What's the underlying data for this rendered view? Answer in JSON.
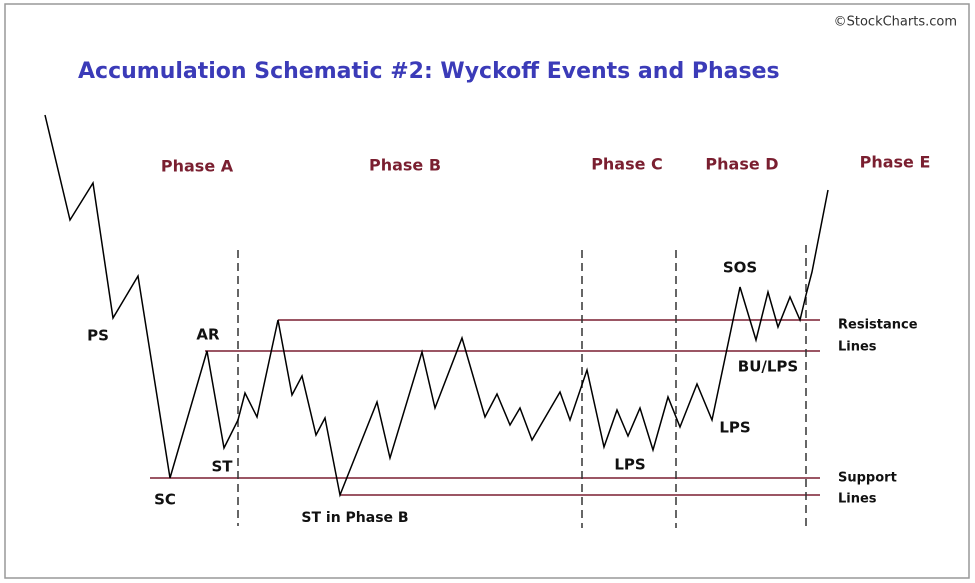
{
  "header": {
    "title": "Accumulation Schematic #2: Wyckoff Events and Phases",
    "credit": "©StockCharts.com"
  },
  "phases": [
    "Phase A",
    "Phase B",
    "Phase C",
    "Phase D",
    "Phase E"
  ],
  "events": [
    "PS",
    "AR",
    "SC",
    "ST",
    "ST in Phase B",
    "LPS",
    "LPS",
    "SOS",
    "BU/LPS"
  ],
  "line_labels": {
    "resistance": [
      "Resistance",
      "Lines"
    ],
    "support": [
      "Support",
      "Lines"
    ]
  }
}
